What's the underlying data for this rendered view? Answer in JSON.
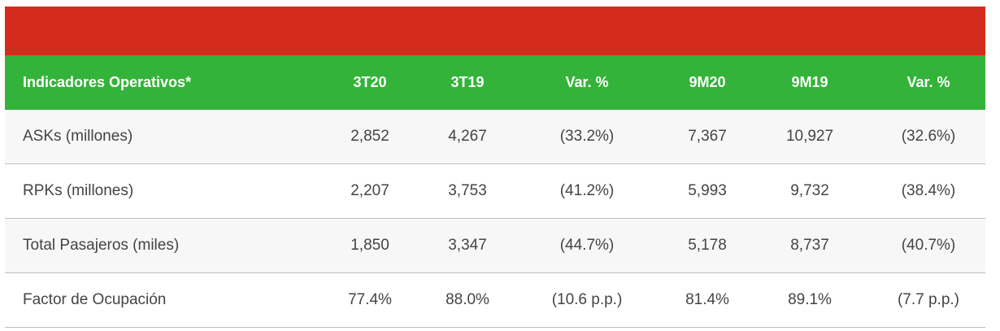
{
  "table": {
    "header": [
      "Indicadores Operativos*",
      "3T20",
      "3T19",
      "Var. %",
      "9M20",
      "9M19",
      "Var. %"
    ],
    "rows": [
      [
        "ASKs (millones)",
        "2,852",
        "4,267",
        "(33.2%)",
        "7,367",
        "10,927",
        "(32.6%)"
      ],
      [
        "RPKs (millones)",
        "2,207",
        "3,753",
        "(41.2%)",
        "5,993",
        "9,732",
        "(38.4%)"
      ],
      [
        "Total Pasajeros (miles)",
        "1,850",
        "3,347",
        "(44.7%)",
        "5,178",
        "8,737",
        "(40.7%)"
      ],
      [
        "Factor de Ocupación",
        "77.4%",
        "88.0%",
        "(10.6 p.p.)",
        "81.4%",
        "89.1%",
        "(7.7 p.p.)"
      ]
    ]
  }
}
